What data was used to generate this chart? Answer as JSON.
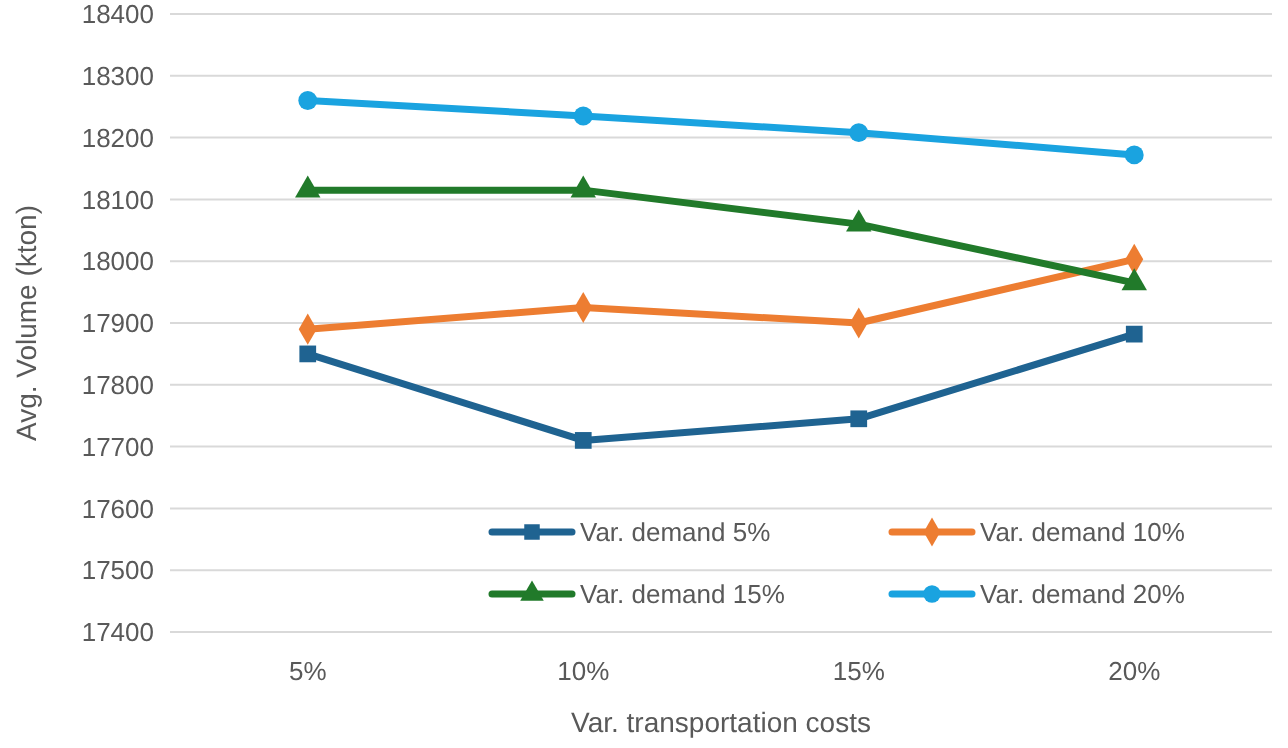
{
  "chart_data": {
    "type": "line",
    "xlabel": "Var. transportation costs",
    "ylabel": "Avg. Volume (kton)",
    "categories": [
      "5%",
      "10%",
      "15%",
      "20%"
    ],
    "series": [
      {
        "name": "Var. demand 5%",
        "color": "#1f6391",
        "marker": "square",
        "values": [
          17850,
          17710,
          17745,
          17882
        ]
      },
      {
        "name": "Var. demand 10%",
        "color": "#ed7d31",
        "marker": "diamond",
        "values": [
          17890,
          17925,
          17900,
          18003
        ]
      },
      {
        "name": "Var. demand 15%",
        "color": "#217a2a",
        "marker": "triangle",
        "values": [
          18115,
          18115,
          18060,
          17965
        ]
      },
      {
        "name": "Var. demand 20%",
        "color": "#1aa3e0",
        "marker": "circle",
        "values": [
          18260,
          18235,
          18208,
          18172
        ]
      }
    ],
    "ylim": [
      17400,
      18400
    ],
    "yticks": [
      17400,
      17500,
      17600,
      17700,
      17800,
      17900,
      18000,
      18100,
      18200,
      18300,
      18400
    ],
    "grid": "y",
    "legend": "bottom right"
  }
}
